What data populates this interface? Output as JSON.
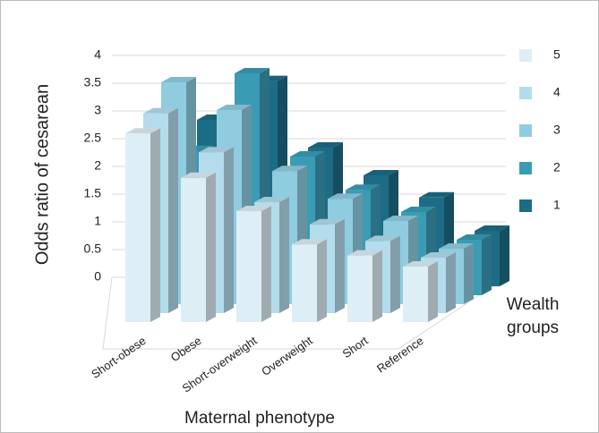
{
  "chart_data": {
    "type": "bar3d",
    "y_label": "Odds ratio of cesarean",
    "x_label": "Maternal phenotype",
    "legend_title": "Wealth groups",
    "categories": [
      "Short-obese",
      "Obese",
      "Short-overweight",
      "Overweight",
      "Short",
      "Reference"
    ],
    "series": [
      {
        "name": "5",
        "color": "#ddeef6",
        "values": [
          3.4,
          2.6,
          2.0,
          1.4,
          1.2,
          1.0
        ]
      },
      {
        "name": "4",
        "color": "#b3dcec",
        "values": [
          3.6,
          2.9,
          2.0,
          1.6,
          1.3,
          1.0
        ]
      },
      {
        "name": "3",
        "color": "#8fcce0",
        "values": [
          4.0,
          3.5,
          2.4,
          1.9,
          1.5,
          1.0
        ]
      },
      {
        "name": "2",
        "color": "#3a9bb5",
        "values": [
          2.6,
          4.0,
          2.5,
          1.9,
          1.5,
          1.0
        ]
      },
      {
        "name": "1",
        "color": "#1d6c85",
        "values": [
          3.0,
          3.7,
          2.5,
          2.0,
          1.6,
          1.0
        ]
      }
    ],
    "ylim": [
      0,
      4
    ],
    "yticks": [
      0,
      0.5,
      1,
      1.5,
      2,
      2.5,
      3,
      3.5,
      4
    ],
    "grid": true
  }
}
